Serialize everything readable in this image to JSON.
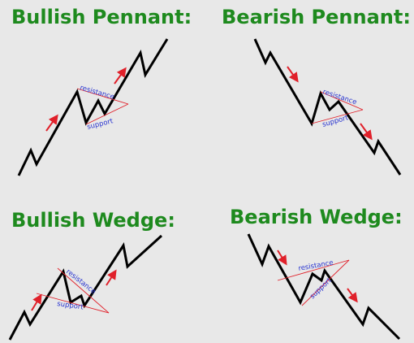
{
  "colors": {
    "background": "#e8e8e8",
    "title": "#1e8a1e",
    "price_line": "#000000",
    "trend_line": "#e0202a",
    "arrow": "#e0202a",
    "label": "#2a35d0"
  },
  "labels": {
    "resistance": "resistance",
    "support": "support"
  },
  "panels": [
    {
      "title": "Bullish Pennant:"
    },
    {
      "title": "Bearish Pennant:"
    },
    {
      "title": "Bullish Wedge:"
    },
    {
      "title": "Bearish Wedge:"
    }
  ]
}
